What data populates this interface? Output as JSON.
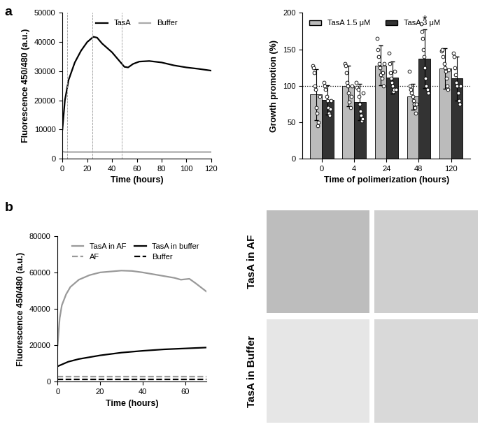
{
  "panel_labels": [
    "a",
    "b"
  ],
  "chart_data": [
    {
      "type": "line",
      "x_label": "Time (hours)",
      "y_label": "Fluorescence 450/480 (a.u.)",
      "xlim": [
        0,
        120
      ],
      "xticks": [
        0,
        20,
        40,
        60,
        80,
        100,
        120
      ],
      "ylim": [
        0,
        50000
      ],
      "yticks": [
        0,
        10000,
        20000,
        30000,
        40000,
        50000
      ],
      "vlines": [
        0,
        4,
        24,
        48,
        120
      ],
      "legend": "upper center",
      "series": [
        {
          "name": "TasA",
          "color": "#000000",
          "line_style": "solid",
          "x": [
            0,
            2,
            5,
            10,
            15,
            20,
            25,
            28,
            32,
            36,
            40,
            45,
            50,
            53,
            57,
            62,
            70,
            80,
            90,
            100,
            110,
            120
          ],
          "values": [
            10000,
            20000,
            27000,
            33000,
            37000,
            40000,
            41800,
            41500,
            39500,
            38000,
            36500,
            34000,
            31500,
            31300,
            32500,
            33300,
            33500,
            33000,
            32000,
            31300,
            30800,
            30200
          ]
        },
        {
          "name": "Buffer",
          "color": "#aaaaaa",
          "line_style": "solid",
          "x": [
            0,
            2,
            10,
            30,
            60,
            90,
            120
          ],
          "values": [
            2500,
            2300,
            2300,
            2300,
            2300,
            2300,
            2300
          ]
        }
      ]
    },
    {
      "type": "bar",
      "x_label": "Time of polimerization (hours)",
      "y_label": "Growth promotion (%)",
      "categories": [
        "0",
        "4",
        "24",
        "48",
        "120"
      ],
      "ylim": [
        0,
        200
      ],
      "yticks": [
        0,
        50,
        100,
        150,
        200
      ],
      "hline": 100,
      "legend": "upper left",
      "annotations": [
        {
          "text": "*",
          "category": "48",
          "series": "TasA 3 μM",
          "y": 183
        }
      ],
      "series": [
        {
          "name": "TasA 1.5 μM",
          "color": "#bbbbbb",
          "values": [
            88,
            100,
            128,
            85,
            124
          ],
          "errors": [
            35,
            28,
            27,
            18,
            28
          ],
          "points": [
            [
              128,
              125,
              118,
              100,
              95,
              70,
              62,
              45,
              50,
              85
            ],
            [
              130,
              128,
              118,
              105,
              100,
              90,
              78,
              70,
              85,
              100
            ],
            [
              165,
              150,
              140,
              130,
              125,
              115,
              110,
              118,
              100,
              130
            ],
            [
              120,
              100,
              95,
              90,
              85,
              80,
              75,
              70,
              62,
              75
            ],
            [
              148,
              150,
              140,
              130,
              125,
              120,
              110,
              100,
              95,
              122
            ]
          ]
        },
        {
          "name": "TasA 3 μM",
          "color": "#333333",
          "values": [
            81,
            78,
            111,
            137,
            110
          ],
          "errors": [
            20,
            25,
            22,
            40,
            30
          ],
          "points": [
            [
              105,
              100,
              95,
              85,
              80,
              70,
              62,
              60,
              68,
              80
            ],
            [
              105,
              98,
              95,
              85,
              75,
              65,
              60,
              52,
              55,
              90
            ],
            [
              145,
              130,
              118,
              110,
              105,
              100,
              92,
              95,
              120,
              95
            ],
            [
              185,
              175,
              165,
              150,
              140,
              125,
              110,
              100,
              95,
              90
            ],
            [
              145,
              140,
              125,
              115,
              105,
              100,
              90,
              80,
              75,
              100
            ]
          ]
        }
      ]
    },
    {
      "type": "line",
      "x_label": "Time (hours)",
      "y_label": "Fluorescence 450/480 (a.u.)",
      "xlim": [
        0,
        70
      ],
      "xticks": [
        0,
        20,
        40,
        60
      ],
      "ylim": [
        0,
        80000
      ],
      "yticks": [
        0,
        20000,
        40000,
        60000,
        80000
      ],
      "legend": "upper right",
      "series": [
        {
          "name": "TasA in AF",
          "color": "#999999",
          "line_style": "solid",
          "x": [
            0,
            1,
            2,
            4,
            6,
            10,
            15,
            20,
            25,
            30,
            35,
            40,
            45,
            50,
            55,
            58,
            62,
            65,
            70
          ],
          "values": [
            20000,
            35000,
            42000,
            48000,
            52000,
            56000,
            58500,
            60000,
            60500,
            61000,
            60800,
            60000,
            59000,
            58000,
            57000,
            56000,
            56500,
            54000,
            49500
          ]
        },
        {
          "name": "AF",
          "color": "#999999",
          "line_style": "dashed",
          "x": [
            0,
            35,
            70
          ],
          "values": [
            3000,
            3000,
            3000
          ]
        },
        {
          "name": "TasA in buffer",
          "color": "#000000",
          "line_style": "solid",
          "x": [
            0,
            5,
            10,
            20,
            30,
            40,
            50,
            60,
            70
          ],
          "values": [
            8500,
            11000,
            12500,
            14500,
            16000,
            17000,
            17800,
            18300,
            18800
          ]
        },
        {
          "name": "Buffer",
          "color": "#000000",
          "line_style": "dashed",
          "x": [
            0,
            35,
            70
          ],
          "values": [
            1500,
            1500,
            1500
          ]
        }
      ]
    }
  ],
  "micrographs": {
    "rows": [
      "TasA in AF",
      "TasA in Buffer"
    ]
  }
}
